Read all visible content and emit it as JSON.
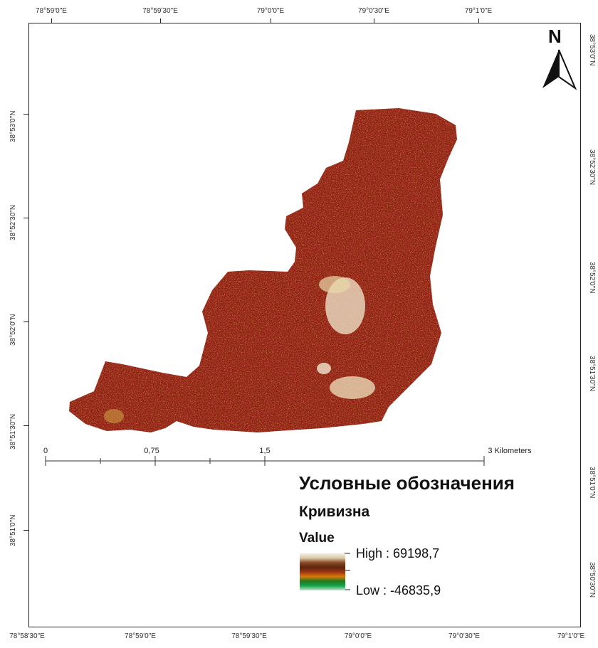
{
  "top_ticks": [
    "78°59'0\"E",
    "78°59'30\"E",
    "79°0'0\"E",
    "79°0'30\"E",
    "79°1'0\"E"
  ],
  "bottom_ticks": [
    "78°58'30\"E",
    "78°59'0\"E",
    "78°59'30\"E",
    "79°0'0\"E",
    "79°0'30\"E",
    "79°1'0\"E"
  ],
  "left_ticks": [
    "38°53'0\"N",
    "38°52'30\"N",
    "38°52'0\"N",
    "38°51'30\"N",
    "38°51'0\"N"
  ],
  "right_ticks": [
    "38°53'0\"N",
    "38°52'30\"N",
    "38°52'0\"N",
    "38°51'30\"N",
    "38°51'0\"N",
    "38°50'30\"N"
  ],
  "north_label": "N",
  "scale_bar": {
    "labels": [
      "0",
      "0,75",
      "1,5",
      "3 Kilometers"
    ]
  },
  "legend": {
    "title": "Условные обозначения",
    "layer": "Кривизна",
    "field": "Value",
    "high_label": "High : 69198,7",
    "low_label": "Low : -46835,9",
    "ramp_colors": [
      "#f2efe6",
      "#d9c8a8",
      "#8a4a22",
      "#5c2410",
      "#9a3412",
      "#d97706",
      "#1f7a1f",
      "#16a34a",
      "#bfe8cc"
    ]
  },
  "map_colors": {
    "base": "#8f1d12",
    "speckle_dark": "#5e1008",
    "speckle_light": "#c86a1e",
    "speckle_yellow": "#d6b24a",
    "pale": "#f1e9cf"
  }
}
